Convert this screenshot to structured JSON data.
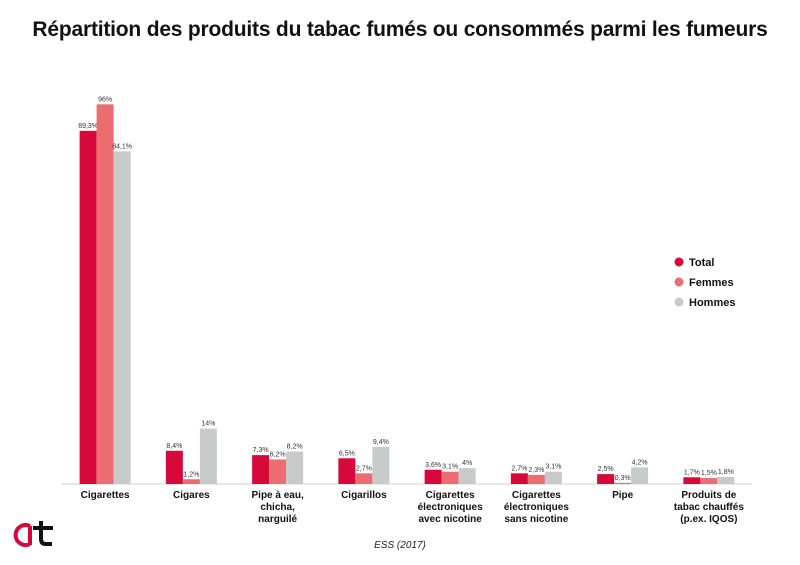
{
  "chart_data": {
    "type": "bar",
    "title": "Répartition des produits du tabac fumés ou consommés parmi les fumeurs",
    "source": "ESS (2017)",
    "ylim": [
      0,
      100
    ],
    "grid": false,
    "legend_position": "right",
    "categories": [
      [
        "Cigarettes"
      ],
      [
        "Cigares"
      ],
      [
        "Pipe à eau,",
        "chicha,",
        "narguilé"
      ],
      [
        "Cigarillos"
      ],
      [
        "Cigarettes",
        "électroniques",
        "avec nicotine"
      ],
      [
        "Cigarettes",
        "électroniques",
        "sans nicotine"
      ],
      [
        "Pipe"
      ],
      [
        "Produits de",
        "tabac chauffés",
        "(p.ex. IQOS)"
      ]
    ],
    "series": [
      {
        "name": "Total",
        "color": "#d6093a",
        "values": [
          89.3,
          8.4,
          7.3,
          6.5,
          3.6,
          2.7,
          2.5,
          1.7
        ],
        "labels": [
          "89,3%",
          "8,4%",
          "7,3%",
          "6,5%",
          "3,6%",
          "2,7%",
          "2,5%",
          "1,7%"
        ]
      },
      {
        "name": "Femmes",
        "color": "#ec6d70",
        "values": [
          96,
          1.2,
          6.2,
          2.7,
          3.1,
          2.3,
          0.3,
          1.5
        ],
        "labels": [
          "96%",
          "1,2%",
          "6,2%",
          "2,7%",
          "3,1%",
          "2,3%",
          "0,3%",
          "1,5%"
        ]
      },
      {
        "name": "Hommes",
        "color": "#c8cac9",
        "values": [
          84.1,
          14,
          8.2,
          9.4,
          4,
          3.1,
          4.2,
          1.8
        ],
        "labels": [
          "84,1%",
          "14%",
          "8,2%",
          "9,4%",
          "4%",
          "3,1%",
          "4,2%",
          "1,8%"
        ]
      }
    ]
  },
  "logo": {
    "colors": [
      "#d6093a",
      "#111111"
    ]
  }
}
